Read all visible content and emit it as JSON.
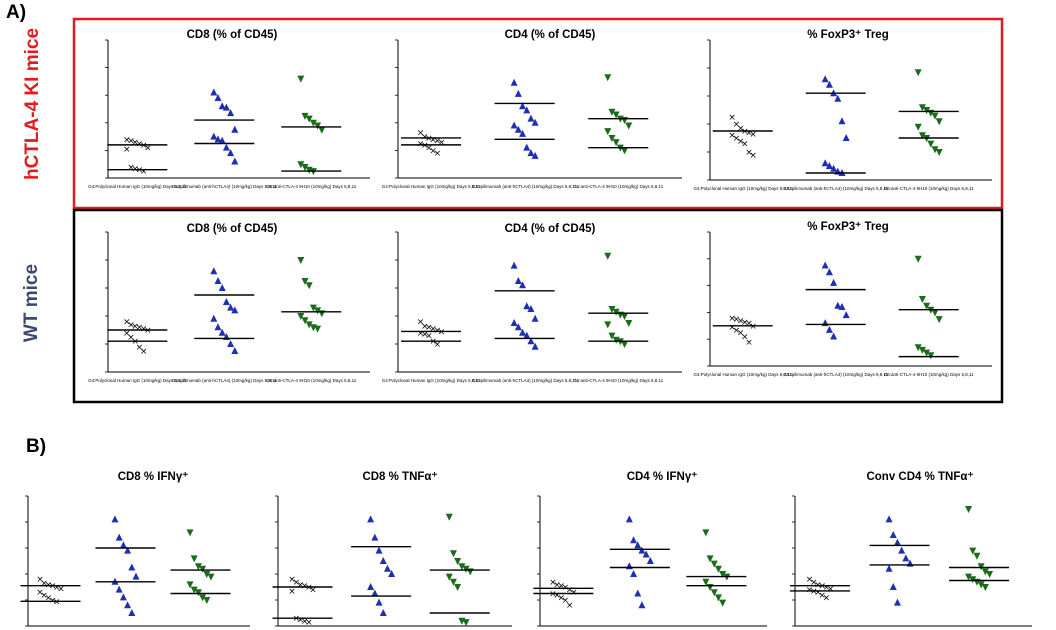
{
  "figure": {
    "section_a": "A)",
    "section_b": "B)",
    "row_label_1": "hCTLA-4 KI mice",
    "row_label_2": "WT mice",
    "row_color_1": "#e31a1c",
    "row_color_2": "#3b4a6b"
  },
  "colors": {
    "x_marker": "#000000",
    "triangle_up": "#1f2fb3",
    "triangle_down": "#1a6b1a"
  },
  "groups": [
    "G4:Polyclonal Human IgG (10mg/kg) Days 5,8,11",
    "G5:Ipilimumab (anti-hCTLA4) (10mg/kg) Days 5,8,11",
    "G6:anti-CTLA-4 9H10 (10mg/kg) Days 5,8,11"
  ],
  "chart_data": [
    {
      "type": "scatter",
      "title": "CD8 (% of CD45)",
      "panel": "A-KI-1",
      "series": [
        {
          "marker": "x",
          "color": "#000000",
          "values": [
            28,
            27,
            26,
            25,
            24,
            22,
            21,
            8,
            7,
            6,
            5
          ],
          "bars": [
            24,
            6
          ]
        },
        {
          "marker": "triangle-up",
          "color": "#1f2fb3",
          "values": [
            62,
            58,
            52,
            51,
            47,
            35,
            30,
            28,
            27,
            22,
            18,
            12
          ],
          "bars": [
            42,
            25
          ]
        },
        {
          "marker": "triangle-down",
          "color": "#1a6b1a",
          "values": [
            72,
            45,
            43,
            40,
            38,
            35,
            10,
            8,
            6,
            5
          ],
          "bars": [
            37,
            5
          ]
        }
      ]
    },
    {
      "type": "scatter",
      "title": "CD4 (% of CD45)",
      "panel": "A-KI-2",
      "series": [
        {
          "marker": "x",
          "color": "#000000",
          "values": [
            33,
            30,
            29,
            28,
            27,
            26,
            25,
            24,
            22,
            20,
            18
          ],
          "bars": [
            29,
            24
          ]
        },
        {
          "marker": "triangle-up",
          "color": "#1f2fb3",
          "values": [
            69,
            61,
            52,
            49,
            43,
            40,
            38,
            35,
            32,
            22,
            18,
            16
          ],
          "bars": [
            54,
            28
          ]
        },
        {
          "marker": "triangle-down",
          "color": "#1a6b1a",
          "values": [
            73,
            48,
            46,
            43,
            42,
            38,
            34,
            29,
            26,
            22,
            20
          ],
          "bars": [
            43,
            22
          ]
        }
      ]
    },
    {
      "type": "scatter",
      "title": "% FoxP3⁺ Treg",
      "panel": "A-KI-3",
      "series": [
        {
          "marker": "x",
          "color": "#000000",
          "values": [
            45,
            40,
            37,
            35,
            34,
            33,
            32,
            30,
            28,
            26,
            20,
            18
          ],
          "bars": [
            35
          ]
        },
        {
          "marker": "triangle-up",
          "color": "#1f2fb3",
          "values": [
            72,
            68,
            62,
            58,
            42,
            30,
            12,
            10,
            8,
            6,
            5
          ],
          "bars": [
            62,
            5
          ]
        },
        {
          "marker": "triangle-down",
          "color": "#1a6b1a",
          "values": [
            77,
            52,
            50,
            48,
            46,
            42,
            38,
            32,
            30,
            26,
            22,
            20
          ],
          "bars": [
            49,
            30
          ]
        }
      ]
    },
    {
      "type": "scatter",
      "title": "CD8 (% of CD45)",
      "panel": "A-WT-1",
      "series": [
        {
          "marker": "x",
          "color": "#000000",
          "values": [
            36,
            34,
            33,
            32,
            31,
            30,
            28,
            25,
            22,
            18,
            15
          ],
          "bars": [
            30,
            22
          ]
        },
        {
          "marker": "triangle-up",
          "color": "#1f2fb3",
          "values": [
            72,
            65,
            60,
            50,
            46,
            44,
            38,
            32,
            28,
            25,
            20,
            15
          ],
          "bars": [
            55,
            24
          ]
        },
        {
          "marker": "triangle-down",
          "color": "#1a6b1a",
          "values": [
            80,
            65,
            62,
            46,
            44,
            42,
            40,
            37,
            34,
            32,
            31
          ],
          "bars": [
            43
          ]
        }
      ]
    },
    {
      "type": "scatter",
      "title": "CD4 (% of CD45)",
      "panel": "A-WT-2",
      "series": [
        {
          "marker": "x",
          "color": "#000000",
          "values": [
            36,
            33,
            32,
            31,
            30,
            29,
            28,
            27,
            26,
            22,
            20
          ],
          "bars": [
            29,
            22
          ]
        },
        {
          "marker": "triangle-up",
          "color": "#1f2fb3",
          "values": [
            76,
            65,
            62,
            47,
            45,
            38,
            35,
            32,
            28,
            26,
            22,
            18
          ],
          "bars": [
            58,
            24
          ]
        },
        {
          "marker": "triangle-down",
          "color": "#1a6b1a",
          "values": [
            83,
            45,
            43,
            41,
            40,
            35,
            34,
            26,
            23,
            22,
            20
          ],
          "bars": [
            42,
            22
          ]
        }
      ]
    },
    {
      "type": "scatter",
      "title": "% FoxP3⁺ Treg",
      "panel": "A-WT-3",
      "series": [
        {
          "marker": "x",
          "color": "#000000",
          "values": [
            36,
            35,
            34,
            33,
            32,
            30,
            29,
            27,
            25,
            22,
            18
          ],
          "bars": [
            30
          ]
        },
        {
          "marker": "triangle-up",
          "color": "#1f2fb3",
          "values": [
            75,
            70,
            62,
            45,
            44,
            38,
            32,
            27,
            22
          ],
          "bars": [
            57,
            31
          ]
        },
        {
          "marker": "triangle-down",
          "color": "#1a6b1a",
          "values": [
            80,
            50,
            45,
            42,
            40,
            35,
            14,
            12,
            10,
            8
          ],
          "bars": [
            42,
            7
          ]
        }
      ]
    },
    {
      "type": "scatter",
      "title": "CD8 % IFNγ⁺",
      "panel": "B-1",
      "series": [
        {
          "marker": "x",
          "color": "#000000",
          "values": [
            36,
            33,
            32,
            31,
            30,
            29,
            26,
            24,
            22,
            20,
            19
          ],
          "bars": [
            31,
            19
          ]
        },
        {
          "marker": "triangle-up",
          "color": "#1f2fb3",
          "values": [
            82,
            68,
            62,
            58,
            45,
            38,
            34,
            28,
            22,
            16,
            10
          ],
          "bars": [
            60,
            34
          ]
        },
        {
          "marker": "triangle-down",
          "color": "#1a6b1a",
          "values": [
            72,
            52,
            46,
            44,
            40,
            38,
            32,
            28,
            26,
            22,
            20
          ],
          "bars": [
            43,
            25
          ]
        }
      ]
    },
    {
      "type": "scatter",
      "title": "CD8 % TNFα⁺",
      "panel": "B-2",
      "series": [
        {
          "marker": "x",
          "color": "#000000",
          "values": [
            36,
            34,
            32,
            31,
            30,
            28,
            27,
            6,
            5,
            4,
            3
          ],
          "bars": [
            30,
            6
          ]
        },
        {
          "marker": "triangle-up",
          "color": "#1f2fb3",
          "values": [
            82,
            68,
            58,
            50,
            44,
            40,
            30,
            25,
            18,
            10
          ],
          "bars": [
            61,
            23
          ]
        },
        {
          "marker": "triangle-down",
          "color": "#1a6b1a",
          "values": [
            84,
            56,
            50,
            46,
            44,
            42,
            38,
            34,
            30,
            4,
            3
          ],
          "bars": [
            43,
            10
          ]
        }
      ]
    },
    {
      "type": "scatter",
      "title": "CD4 % IFNγ⁺",
      "panel": "B-3",
      "series": [
        {
          "marker": "x",
          "color": "#000000",
          "values": [
            34,
            32,
            31,
            30,
            28,
            26,
            25,
            24,
            22,
            20,
            16
          ],
          "bars": [
            29,
            25
          ]
        },
        {
          "marker": "triangle-up",
          "color": "#1f2fb3",
          "values": [
            82,
            66,
            62,
            58,
            55,
            50,
            46,
            40,
            25,
            16
          ],
          "bars": [
            59,
            45
          ]
        },
        {
          "marker": "triangle-down",
          "color": "#1a6b1a",
          "values": [
            72,
            52,
            48,
            44,
            40,
            38,
            34,
            30,
            26,
            22,
            18
          ],
          "bars": [
            38,
            31
          ]
        }
      ]
    },
    {
      "type": "scatter",
      "title": "Conv CD4 % TNFα⁺",
      "panel": "B-4",
      "series": [
        {
          "marker": "x",
          "color": "#000000",
          "values": [
            36,
            34,
            32,
            31,
            30,
            29,
            28,
            27,
            26,
            24,
            22
          ],
          "bars": [
            31,
            27
          ]
        },
        {
          "marker": "triangle-up",
          "color": "#1f2fb3",
          "values": [
            82,
            70,
            64,
            58,
            52,
            48,
            44,
            30,
            18
          ],
          "bars": [
            62,
            47
          ]
        },
        {
          "marker": "triangle-down",
          "color": "#1a6b1a",
          "values": [
            90,
            58,
            54,
            46,
            42,
            40,
            38,
            36,
            34,
            32,
            30
          ],
          "bars": [
            45,
            35
          ]
        }
      ]
    }
  ]
}
